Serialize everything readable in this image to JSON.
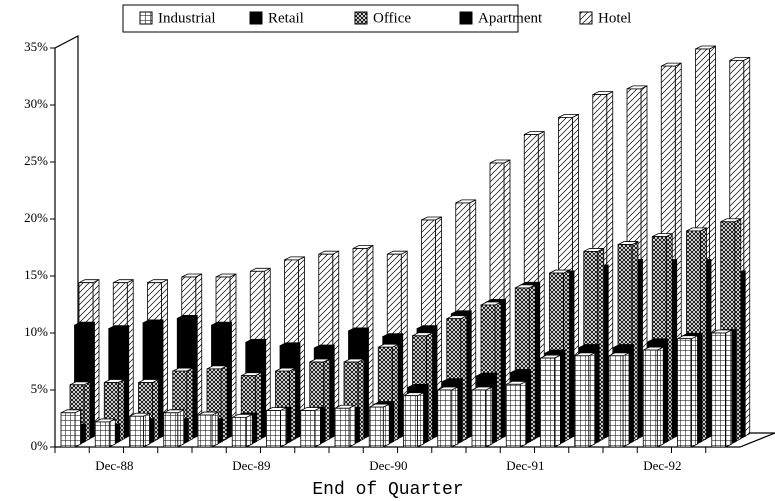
{
  "chart_data": {
    "type": "bar3d",
    "x_label": "End of Quarter",
    "categories": [
      null,
      "Dec-88",
      null,
      null,
      null,
      "Dec-89",
      null,
      null,
      null,
      "Dec-90",
      null,
      null,
      null,
      "Dec-91",
      null,
      null,
      null,
      "Dec-92",
      null,
      null
    ],
    "series": [
      {
        "name": "Industrial",
        "color": "#000000",
        "values": [
          3,
          2.2,
          2.7,
          3,
          2.8,
          2.6,
          3.2,
          3.2,
          3.4,
          3.5,
          4.5,
          5,
          5,
          5.5,
          7.8,
          8,
          8,
          8.5,
          9.5,
          10
        ]
      },
      {
        "name": "Retail",
        "color": "#000000",
        "values": [
          1.5,
          1.5,
          2,
          2,
          2,
          2.5,
          3,
          3,
          3,
          3.5,
          5,
          5.5,
          6,
          6.3,
          8,
          8.5,
          8.5,
          9,
          9.5,
          9.8
        ]
      },
      {
        "name": "Office",
        "color": "#000000",
        "values": [
          5,
          5.2,
          5.2,
          6.2,
          6.4,
          5.8,
          6.2,
          7,
          7,
          8.3,
          9.3,
          10.8,
          12,
          13.5,
          14.8,
          16.7,
          17.3,
          18,
          18.5,
          19.3
        ]
      },
      {
        "name": "Apartment",
        "color": "#000000",
        "values": [
          10,
          9.7,
          10.2,
          10.6,
          10,
          8.5,
          8.2,
          8,
          9.5,
          9,
          9.7,
          11,
          12,
          13.5,
          14.5,
          15,
          15.5,
          15.5,
          15.5,
          14.5
        ]
      },
      {
        "name": "Hotel",
        "color": "#000000",
        "values": [
          13.5,
          13.5,
          13.5,
          14,
          14,
          14.5,
          15.5,
          16,
          16.5,
          16,
          19,
          20.5,
          24,
          26.5,
          28,
          30,
          30.5,
          32.5,
          34,
          33
        ]
      }
    ],
    "ylim": [
      0,
      35
    ],
    "yticks": [
      {
        "value": 0,
        "label": "0%"
      },
      {
        "value": 5,
        "label": "5%"
      },
      {
        "value": 10,
        "label": "10%"
      },
      {
        "value": 15,
        "label": "15%"
      },
      {
        "value": 20,
        "label": "20%"
      },
      {
        "value": 25,
        "label": "25%"
      },
      {
        "value": 30,
        "label": "30%"
      },
      {
        "value": 35,
        "label": "35%"
      }
    ],
    "legend": "top"
  }
}
